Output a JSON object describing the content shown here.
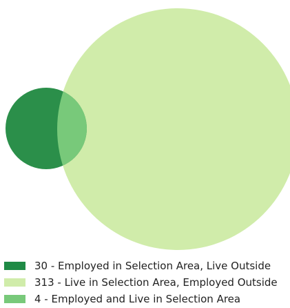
{
  "venn": {
    "sets": [
      {
        "name": "employed_in_selection_live_outside",
        "count": 30,
        "color": "#2b8f4a"
      },
      {
        "name": "live_in_selection_employed_outside",
        "count": 313,
        "color": "#d0ecaa"
      },
      {
        "name": "employed_and_live_in_selection",
        "count": 4,
        "color": "#78c97a"
      }
    ]
  },
  "legend": {
    "items": [
      {
        "label": "30 - Employed in Selection Area, Live Outside",
        "color": "#1f8a45"
      },
      {
        "label": "313 - Live in Selection Area, Employed Outside",
        "color": "#d0ecaa"
      },
      {
        "label": "4 - Employed and Live in Selection Area",
        "color": "#78c97a"
      }
    ]
  }
}
